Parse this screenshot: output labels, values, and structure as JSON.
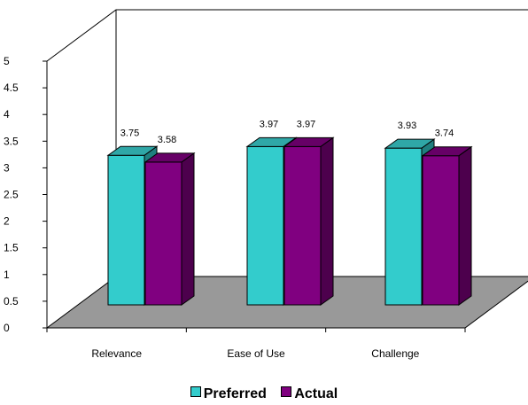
{
  "chart_data": {
    "type": "bar",
    "categories": [
      "Relevance",
      "Ease of Use",
      "Challenge"
    ],
    "series": [
      {
        "name": "Preferred",
        "values": [
          3.75,
          3.97,
          3.93
        ],
        "color": "#33cccc",
        "top_color": "#2fa7a7",
        "side_color": "#1f7f7f"
      },
      {
        "name": "Actual",
        "values": [
          3.58,
          3.97,
          3.74
        ],
        "color": "#800080",
        "top_color": "#660066",
        "side_color": "#4d004d"
      }
    ],
    "data_labels": [
      [
        "3.75",
        "3.97",
        "3.93"
      ],
      [
        "3.58",
        "3.97",
        "3.74"
      ]
    ],
    "yticks": [
      "0",
      "0.5",
      "1",
      "1.5",
      "2",
      "2.5",
      "3",
      "3.5",
      "4",
      "4.5",
      "5"
    ],
    "ylim": [
      0,
      5
    ],
    "floor_color": "#999999",
    "grid": false,
    "legend_position": "bottom"
  }
}
